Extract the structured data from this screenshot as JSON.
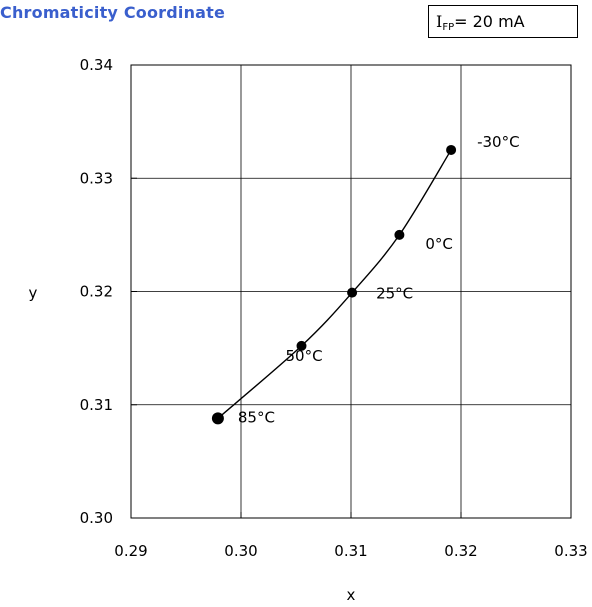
{
  "title": "Chromaticity Coordinate",
  "condition": {
    "symbol": "I",
    "subscript": "FP",
    "value": "= 20 mA"
  },
  "colors": {
    "title": "#3a5fcd",
    "series": "#000000"
  },
  "chart_data": {
    "type": "scatter",
    "title": "Chromaticity Coordinate",
    "xlabel": "x",
    "ylabel": "y",
    "xlim": [
      0.29,
      0.33
    ],
    "ylim": [
      0.3,
      0.34
    ],
    "x_ticks": [
      "0.29",
      "0.30",
      "0.31",
      "0.32",
      "0.33"
    ],
    "y_ticks": [
      "0.30",
      "0.31",
      "0.32",
      "0.33",
      "0.34"
    ],
    "grid": true,
    "legend": "none",
    "series": [
      {
        "points": [
          {
            "x": 0.2979,
            "y": 0.3088,
            "label": "85°C"
          },
          {
            "x": 0.3055,
            "y": 0.3152,
            "label": "50°C"
          },
          {
            "x": 0.3101,
            "y": 0.3199,
            "label": "25°C"
          },
          {
            "x": 0.3144,
            "y": 0.325,
            "label": "0°C"
          },
          {
            "x": 0.3191,
            "y": 0.3325,
            "label": "-30°C"
          }
        ]
      }
    ]
  }
}
